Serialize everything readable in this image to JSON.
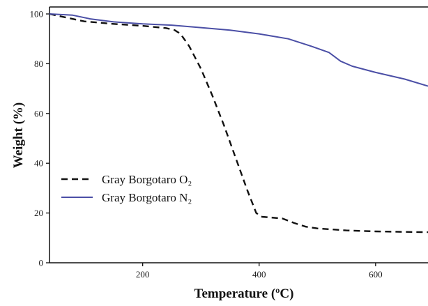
{
  "chart_data": {
    "type": "line",
    "title": "",
    "xlabel": "Temperature (ºC)",
    "ylabel": "Weight (%)",
    "xlim": [
      40,
      690
    ],
    "ylim": [
      0,
      100
    ],
    "xticks": [
      200,
      400,
      600
    ],
    "yticks": [
      0,
      20,
      40,
      60,
      80,
      100
    ],
    "grid": false,
    "legend_position": "lower-left",
    "series": [
      {
        "name": "Gray Borgotaro O₂",
        "style": "dashed",
        "color": "#111111",
        "x": [
          40,
          70,
          100,
          150,
          200,
          240,
          255,
          265,
          280,
          300,
          320,
          340,
          360,
          380,
          395,
          405,
          420,
          440,
          460,
          480,
          500,
          550,
          600,
          650,
          690
        ],
        "y": [
          100,
          98.5,
          97,
          96,
          95.2,
          94.3,
          93.5,
          92,
          87,
          78,
          67,
          55,
          42,
          29,
          20,
          18.5,
          18.2,
          17.8,
          16,
          14.5,
          13.8,
          13,
          12.6,
          12.4,
          12.3
        ]
      },
      {
        "name": "Gray Borgotaro N₂",
        "style": "solid",
        "color": "#4b4fa6",
        "x": [
          40,
          80,
          110,
          150,
          200,
          250,
          300,
          350,
          400,
          450,
          490,
          520,
          540,
          560,
          600,
          650,
          690
        ],
        "y": [
          100,
          99.5,
          98,
          96.8,
          96,
          95.5,
          94.5,
          93.5,
          92,
          90,
          87,
          84.5,
          81,
          79,
          76.5,
          73.8,
          71
        ]
      }
    ]
  }
}
